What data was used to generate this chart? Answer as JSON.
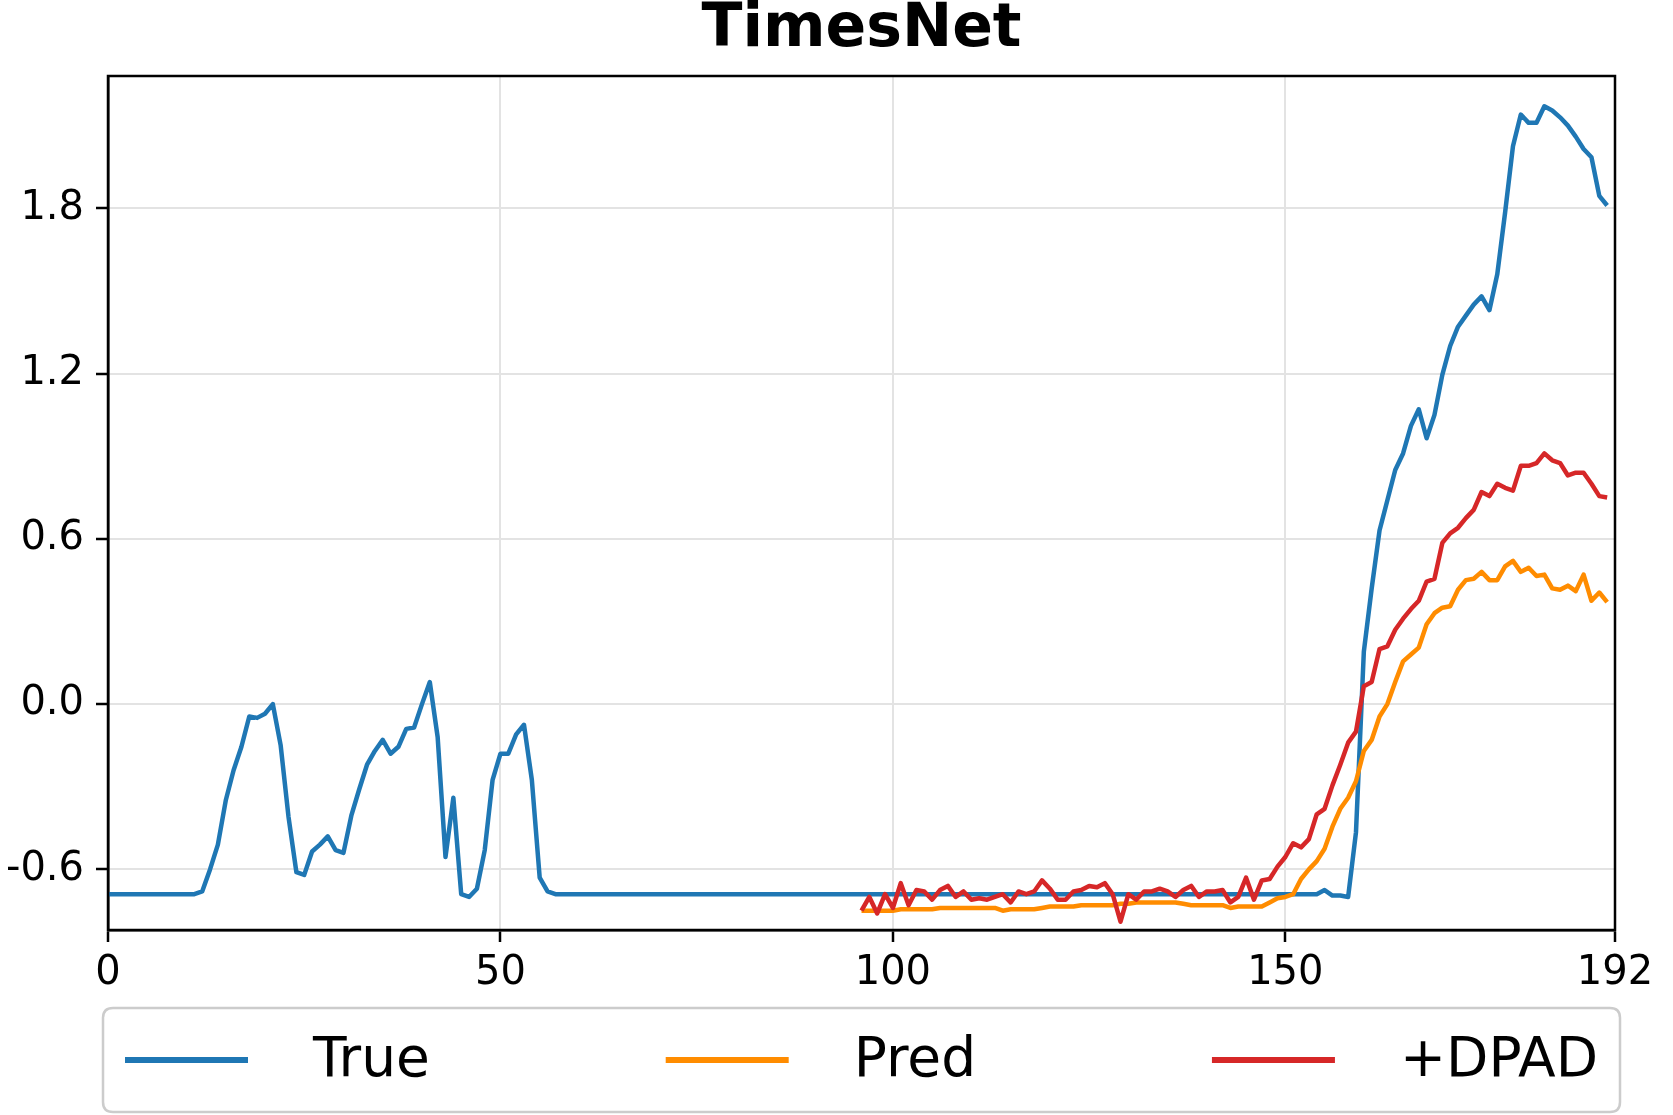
{
  "chart_data": {
    "type": "line",
    "title": "TimesNet",
    "xlim": [
      0,
      192
    ],
    "xticks": [
      0,
      50,
      100,
      150,
      192
    ],
    "ylim": [
      -0.82,
      2.28
    ],
    "yticks": [
      -0.6,
      {
        "value": 0,
        "label": "0.0"
      },
      0.6,
      1.2,
      1.8
    ],
    "grid": true,
    "legend": "bottom",
    "series": [
      {
        "name": "True",
        "color": "#1f77b4",
        "x": [
          0,
          11,
          12,
          13,
          14,
          15,
          16,
          17,
          18,
          19,
          20,
          21,
          22,
          23,
          24,
          25,
          26,
          27,
          28,
          29,
          30,
          31,
          32,
          33,
          34,
          35,
          36,
          37,
          38,
          39,
          40,
          41,
          42,
          43,
          44,
          45,
          46,
          47,
          48,
          49,
          50,
          51,
          52,
          53,
          54,
          55,
          56,
          57,
          154,
          155,
          156,
          157,
          158,
          159,
          160,
          161,
          162,
          163,
          164,
          165,
          166,
          167,
          168,
          169,
          170,
          171,
          172,
          173,
          174,
          175,
          176,
          177,
          178,
          179,
          180,
          181,
          182,
          183,
          184,
          185,
          186,
          187,
          188,
          189,
          190,
          191
        ],
        "values": [
          -0.69,
          -0.69,
          -0.68,
          -0.6,
          -0.51,
          -0.35,
          -0.24,
          -0.155,
          -0.045,
          -0.05,
          -0.035,
          0,
          -0.15,
          -0.41,
          -0.61,
          -0.62,
          -0.535,
          -0.51,
          -0.48,
          -0.53,
          -0.54,
          -0.405,
          -0.31,
          -0.22,
          -0.17,
          -0.13,
          -0.18,
          -0.155,
          -0.09,
          -0.085,
          0,
          0.08,
          -0.12,
          -0.555,
          -0.34,
          -0.69,
          -0.7,
          -0.67,
          -0.53,
          -0.275,
          -0.18,
          -0.18,
          -0.11,
          -0.075,
          -0.275,
          -0.63,
          -0.68,
          -0.69,
          -0.69,
          -0.675,
          -0.695,
          -0.695,
          -0.7,
          -0.465,
          0.19,
          0.42,
          0.63,
          0.74,
          0.85,
          0.91,
          1.01,
          1.07,
          0.965,
          1.05,
          1.195,
          1.3,
          1.37,
          1.41,
          1.45,
          1.48,
          1.43,
          1.56,
          1.785,
          2.025,
          2.14,
          2.11,
          2.11,
          2.17,
          2.155,
          2.13,
          2.1,
          2.06,
          2.015,
          1.985,
          1.845,
          1.81
        ]
      },
      {
        "name": "Pred",
        "color": "#ff8c00",
        "x": [
          96,
          97,
          98,
          99,
          100,
          101,
          102,
          103,
          104,
          105,
          106,
          107,
          108,
          109,
          110,
          111,
          112,
          113,
          114,
          115,
          116,
          117,
          118,
          119,
          120,
          121,
          122,
          123,
          124,
          125,
          126,
          127,
          128,
          129,
          130,
          131,
          132,
          133,
          134,
          135,
          136,
          137,
          138,
          139,
          140,
          141,
          142,
          143,
          144,
          145,
          146,
          147,
          148,
          149,
          150,
          151,
          152,
          153,
          154,
          155,
          156,
          157,
          158,
          159,
          160,
          161,
          162,
          163,
          164,
          165,
          166,
          167,
          168,
          169,
          170,
          171,
          172,
          173,
          174,
          175,
          176,
          177,
          178,
          179,
          180,
          181,
          182,
          183,
          184,
          185,
          186,
          187,
          188,
          189,
          190,
          191
        ],
        "values": [
          -0.75,
          -0.75,
          -0.75,
          -0.75,
          -0.75,
          -0.745,
          -0.745,
          -0.745,
          -0.745,
          -0.745,
          -0.74,
          -0.74,
          -0.74,
          -0.74,
          -0.74,
          -0.74,
          -0.74,
          -0.74,
          -0.75,
          -0.745,
          -0.745,
          -0.745,
          -0.745,
          -0.74,
          -0.735,
          -0.735,
          -0.735,
          -0.735,
          -0.73,
          -0.73,
          -0.73,
          -0.73,
          -0.73,
          -0.725,
          -0.725,
          -0.72,
          -0.72,
          -0.72,
          -0.72,
          -0.72,
          -0.72,
          -0.725,
          -0.73,
          -0.73,
          -0.73,
          -0.73,
          -0.73,
          -0.74,
          -0.735,
          -0.735,
          -0.735,
          -0.735,
          -0.72,
          -0.705,
          -0.7,
          -0.69,
          -0.635,
          -0.6,
          -0.57,
          -0.525,
          -0.445,
          -0.38,
          -0.34,
          -0.28,
          -0.17,
          -0.13,
          -0.045,
          0,
          0.08,
          0.155,
          0.18,
          0.205,
          0.29,
          0.33,
          0.35,
          0.355,
          0.415,
          0.45,
          0.455,
          0.48,
          0.45,
          0.45,
          0.5,
          0.52,
          0.48,
          0.495,
          0.465,
          0.47,
          0.42,
          0.415,
          0.43,
          0.41,
          0.47,
          0.375,
          0.405,
          0.37
        ]
      },
      {
        "name": "+DPAD",
        "color": "#d62728",
        "x": [
          96,
          97,
          98,
          99,
          100,
          101,
          102,
          103,
          104,
          105,
          106,
          107,
          108,
          109,
          110,
          111,
          112,
          113,
          114,
          115,
          116,
          117,
          118,
          119,
          120,
          121,
          122,
          123,
          124,
          125,
          126,
          127,
          128,
          129,
          130,
          131,
          132,
          133,
          134,
          135,
          136,
          137,
          138,
          139,
          140,
          141,
          142,
          143,
          144,
          145,
          146,
          147,
          148,
          149,
          150,
          151,
          152,
          153,
          154,
          155,
          156,
          157,
          158,
          159,
          160,
          161,
          162,
          163,
          164,
          165,
          166,
          167,
          168,
          169,
          170,
          171,
          172,
          173,
          174,
          175,
          176,
          177,
          178,
          179,
          180,
          181,
          182,
          183,
          184,
          185,
          186,
          187,
          188,
          189,
          190,
          191
        ],
        "values": [
          -0.75,
          -0.7,
          -0.76,
          -0.69,
          -0.74,
          -0.65,
          -0.73,
          -0.675,
          -0.68,
          -0.71,
          -0.675,
          -0.66,
          -0.7,
          -0.68,
          -0.71,
          -0.705,
          -0.71,
          -0.7,
          -0.69,
          -0.72,
          -0.68,
          -0.69,
          -0.68,
          -0.64,
          -0.67,
          -0.71,
          -0.71,
          -0.68,
          -0.675,
          -0.66,
          -0.665,
          -0.65,
          -0.69,
          -0.79,
          -0.69,
          -0.71,
          -0.68,
          -0.68,
          -0.67,
          -0.68,
          -0.7,
          -0.675,
          -0.66,
          -0.7,
          -0.68,
          -0.68,
          -0.675,
          -0.72,
          -0.7,
          -0.63,
          -0.71,
          -0.64,
          -0.635,
          -0.59,
          -0.555,
          -0.505,
          -0.52,
          -0.49,
          -0.4,
          -0.38,
          -0.295,
          -0.22,
          -0.14,
          -0.1,
          0.065,
          0.08,
          0.2,
          0.21,
          0.27,
          0.31,
          0.345,
          0.375,
          0.445,
          0.455,
          0.585,
          0.62,
          0.64,
          0.675,
          0.705,
          0.77,
          0.755,
          0.8,
          0.785,
          0.775,
          0.865,
          0.865,
          0.875,
          0.91,
          0.885,
          0.875,
          0.83,
          0.84,
          0.84,
          0.8,
          0.755,
          0.75
        ]
      }
    ]
  }
}
